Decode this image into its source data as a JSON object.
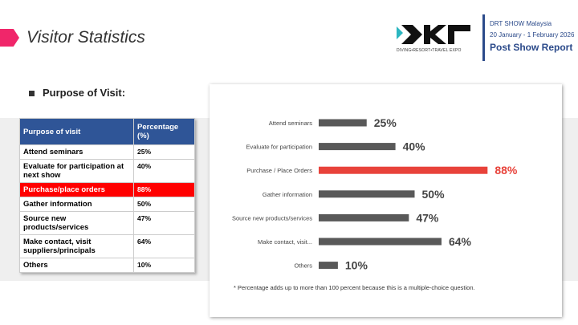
{
  "header": {
    "title": "Visitor Statistics",
    "logo_text": "DRT",
    "logo_tagline": "DIVING•RESORT•TRAVEL EXPO",
    "event": "DRT SHOW Malaysia",
    "dates": "20 January - 1 February 2026",
    "report": "Post Show Report"
  },
  "section": {
    "title": "Purpose of Visit:"
  },
  "table": {
    "headers": [
      "Purpose of visit",
      "Percentage (%)"
    ],
    "rows": [
      [
        "Attend seminars",
        "25%"
      ],
      [
        "Evaluate for participation at next show",
        "40%"
      ],
      [
        "Purchase/place orders",
        "88%"
      ],
      [
        "Gather information",
        "50%"
      ],
      [
        "Source new products/services",
        "47%"
      ],
      [
        "Make contact, visit suppliers/principals",
        "64%"
      ],
      [
        "Others",
        "10%"
      ]
    ]
  },
  "chart_data": {
    "type": "bar",
    "orientation": "horizontal",
    "categories": [
      "Attend seminars",
      "Evaluate for participation",
      "Purchase / Place Orders",
      "Gather information",
      "Source new products/services",
      "Make contact, visit...",
      "Others"
    ],
    "values": [
      25,
      40,
      88,
      50,
      47,
      64,
      10
    ],
    "unit": "%",
    "highlight_index": 2,
    "colors": {
      "bar": "#595959",
      "highlight": "#e8423a"
    },
    "note": "* Percentage adds up to more than 100 percent because this is a multiple-choice question."
  }
}
